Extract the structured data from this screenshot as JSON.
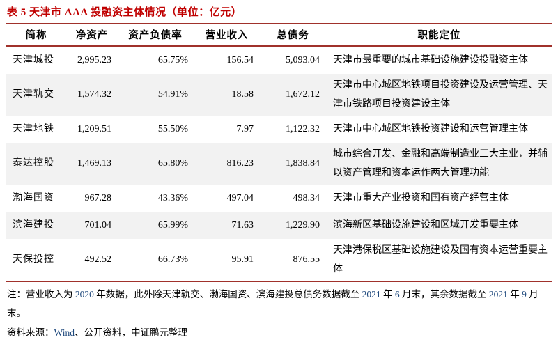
{
  "title": "表 5 天津市 AAA 投融资主体情况（单位：亿元）",
  "colors": {
    "title_red": "#C00000",
    "rule_dark_red": "#A0312B",
    "stripe_gray": "#F2F2F2",
    "note_number_blue": "#1F497D"
  },
  "table": {
    "headers": [
      "简称",
      "净资产",
      "资产负债率",
      "营业收入",
      "总债务",
      "职能定位"
    ],
    "rows": [
      {
        "name": "天津城投",
        "net_assets": "2,995.23",
        "debt_ratio": "65.75%",
        "revenue": "156.54",
        "total_debt": "5,093.04",
        "role": "天津市最重要的城市基础设施建设投融资主体"
      },
      {
        "name": "天津轨交",
        "net_assets": "1,574.32",
        "debt_ratio": "54.91%",
        "revenue": "18.58",
        "total_debt": "1,672.12",
        "role": "天津市中心城区地铁项目投资建设及运营管理、天津市铁路项目投资建设主体"
      },
      {
        "name": "天津地铁",
        "net_assets": "1,209.51",
        "debt_ratio": "55.50%",
        "revenue": "7.97",
        "total_debt": "1,122.32",
        "role": "天津市中心城区地铁投资建设和运营管理主体"
      },
      {
        "name": "泰达控股",
        "net_assets": "1,469.13",
        "debt_ratio": "65.80%",
        "revenue": "816.23",
        "total_debt": "1,838.84",
        "role": "城市综合开发、金融和高端制造业三大主业，并辅以资产管理和资本运作两大管理功能"
      },
      {
        "name": "渤海国资",
        "net_assets": "967.28",
        "debt_ratio": "43.36%",
        "revenue": "497.04",
        "total_debt": "498.34",
        "role": "天津市重大产业投资和国有资产经营主体"
      },
      {
        "name": "滨海建投",
        "net_assets": "701.04",
        "debt_ratio": "65.99%",
        "revenue": "71.63",
        "total_debt": "1,229.90",
        "role": "滨海新区基础设施建设和区域开发重要主体"
      },
      {
        "name": "天保投控",
        "net_assets": "492.52",
        "debt_ratio": "66.73%",
        "revenue": "95.91",
        "total_debt": "876.55",
        "role": "天津港保税区基础设施建设及国有资本运营重要主体"
      }
    ]
  },
  "note": {
    "part1": "注：营业收入为 ",
    "num1": "2020",
    "part2": " 年数据，此外除天津轨交、渤海国资、滨海建投总债务数据截至 ",
    "num2": "2021",
    "part3": " 年 ",
    "num3": "6",
    "part4": " 月末，其余数据截至 ",
    "num4": "2021",
    "part5": " 年 ",
    "num5": "9",
    "part6": " 月末。"
  },
  "source": {
    "label": "资料来源：",
    "wind": "Wind",
    "rest": "、公开资料，中证鹏元整理"
  }
}
